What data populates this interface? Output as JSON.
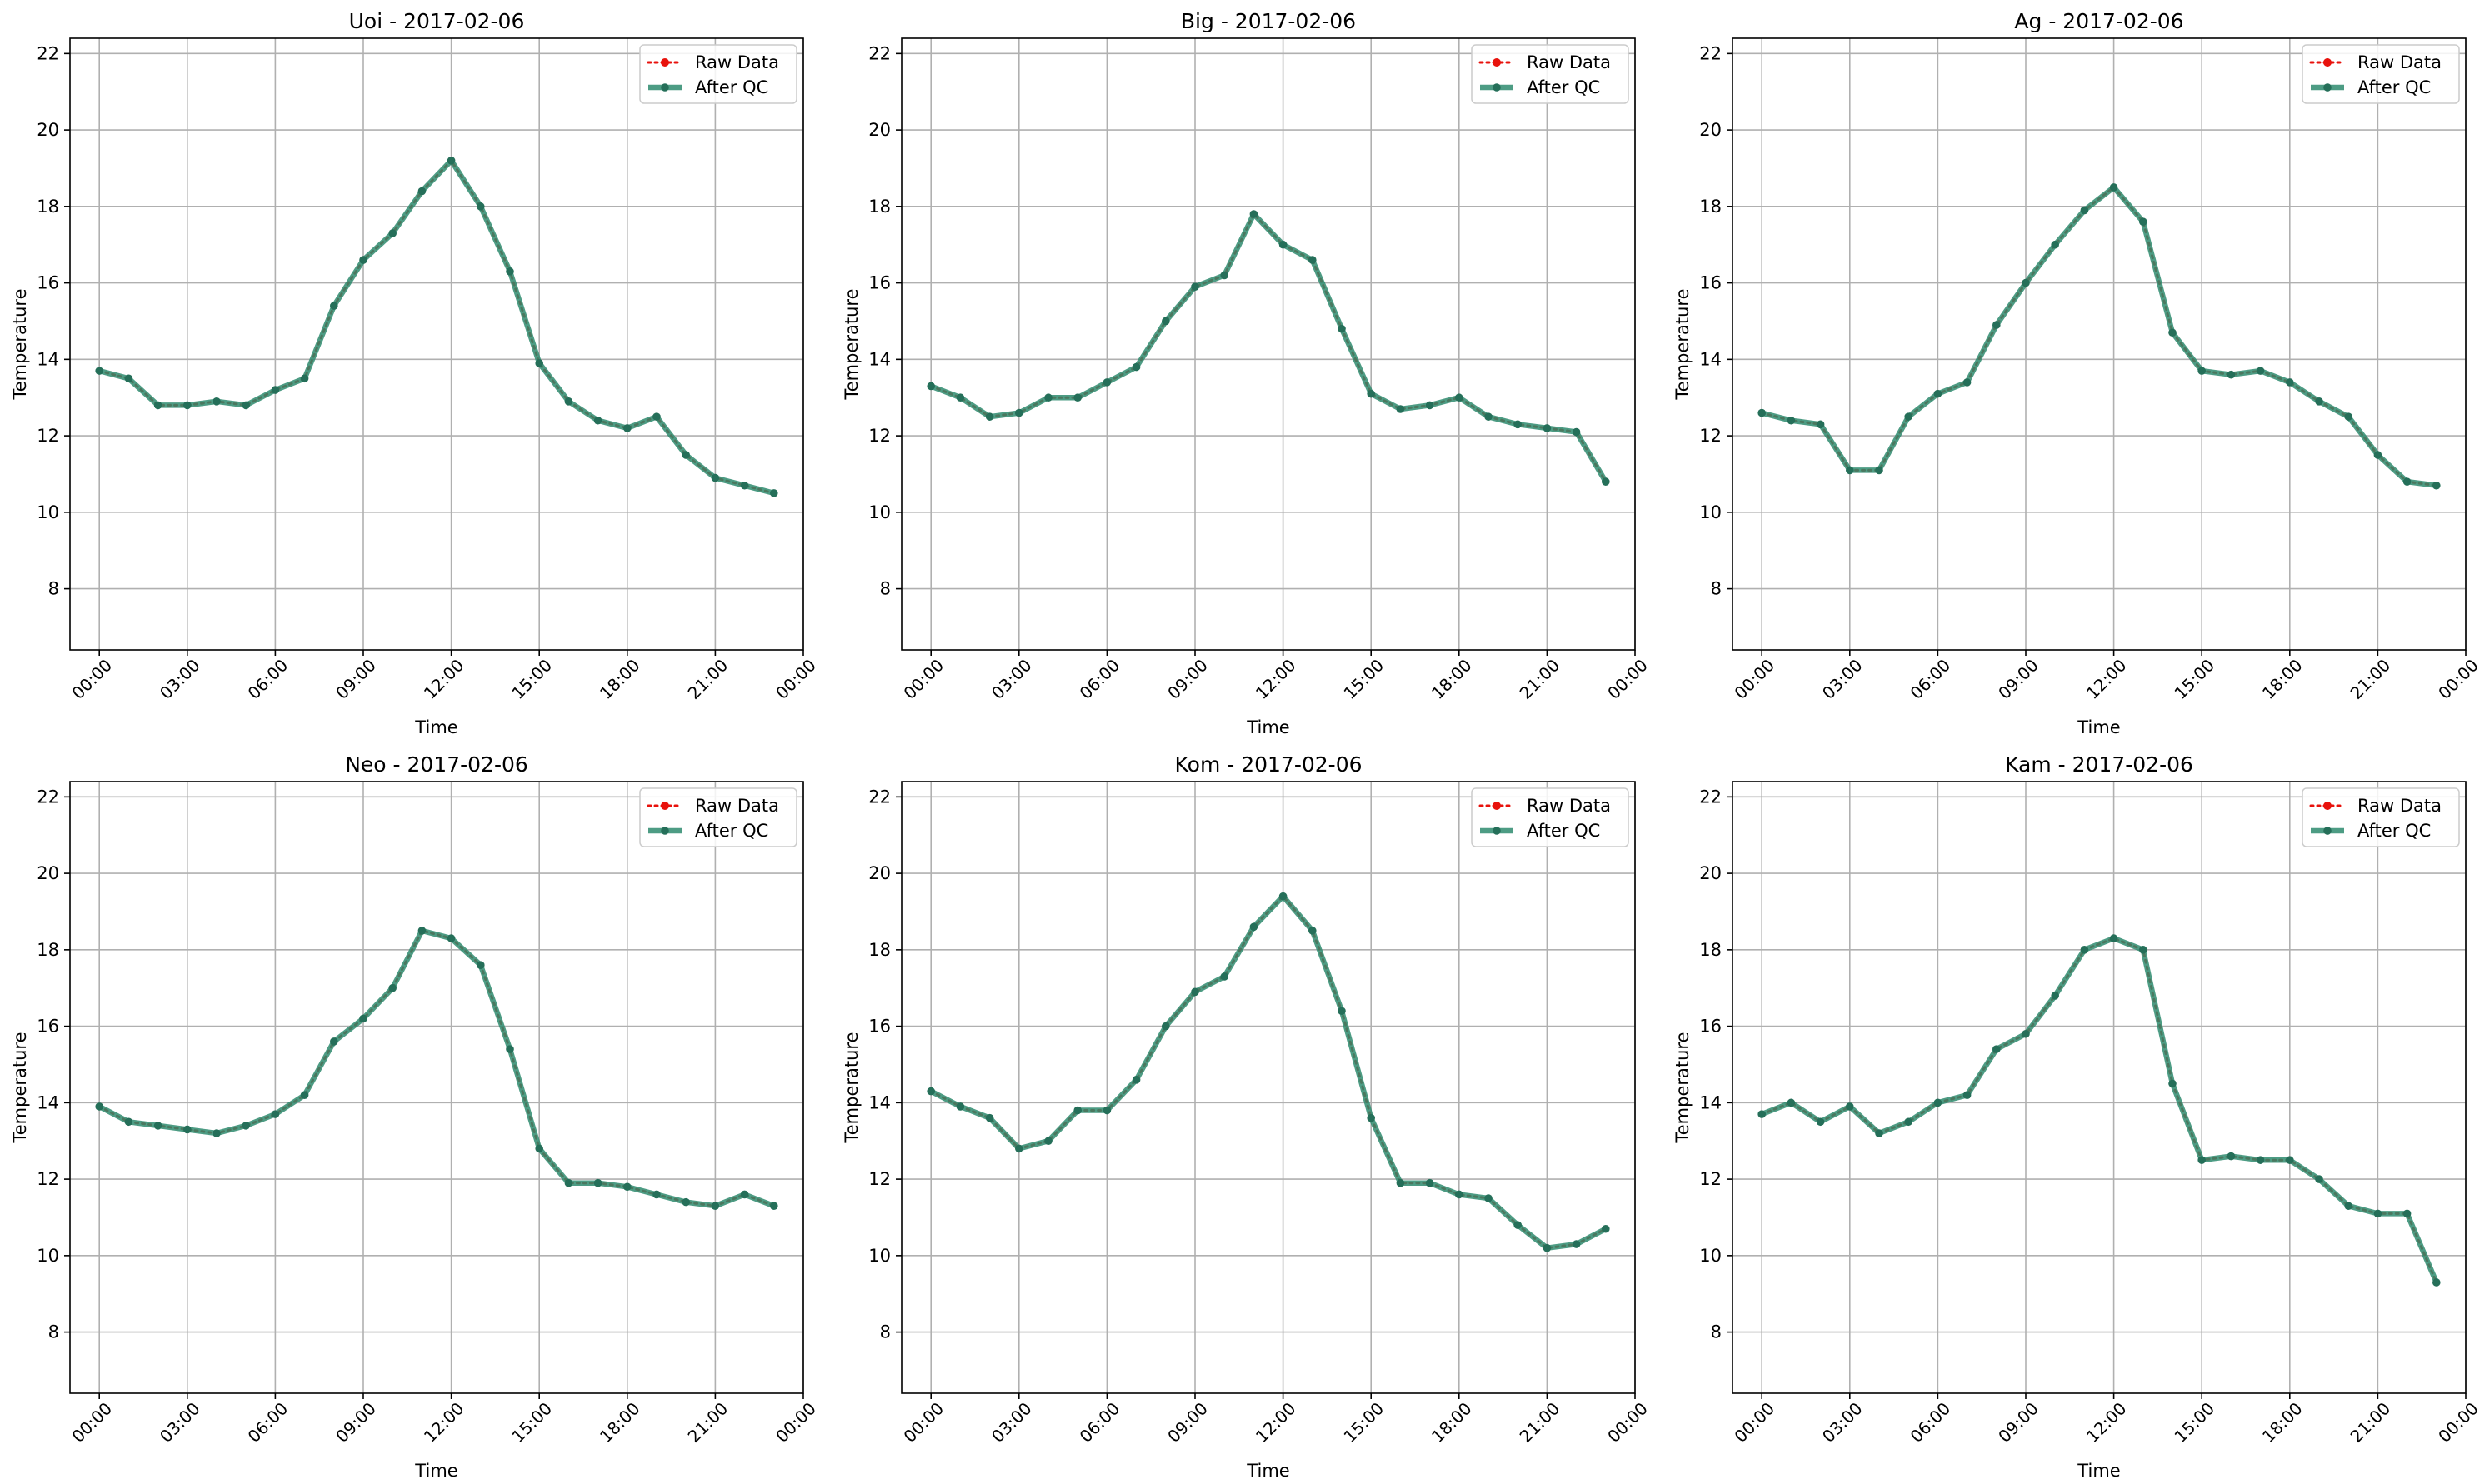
{
  "x_tick_labels": [
    "00:00",
    "03:00",
    "06:00",
    "09:00",
    "12:00",
    "15:00",
    "18:00",
    "21:00",
    "00:00"
  ],
  "y_tick_labels": [
    "8",
    "10",
    "12",
    "14",
    "16",
    "18",
    "20",
    "22"
  ],
  "xlabel": "Time",
  "ylabel": "Temperature",
  "legend_labels": [
    "Raw Data",
    "After QC"
  ],
  "colors": {
    "raw": "#e8120c",
    "qc": "#2e8b6f",
    "grid": "#b0b0b0",
    "axis": "#000000"
  },
  "chart_data": [
    {
      "type": "line",
      "title": "Uoi - 2017-02-06",
      "xlabel": "Time",
      "ylabel": "Temperature",
      "ylim": [
        6.4,
        22.4
      ],
      "x_unit": "hours",
      "xlim": [
        -1.0,
        24.0
      ],
      "grid": true,
      "legend": "top-right",
      "x": [
        0,
        1,
        2,
        3,
        4,
        5,
        6,
        7,
        8,
        9,
        10,
        11,
        12,
        13,
        14,
        15,
        16,
        17,
        18,
        19,
        20,
        21,
        22,
        23
      ],
      "series": [
        {
          "name": "Raw Data",
          "values": [
            13.7,
            13.5,
            12.8,
            12.8,
            12.9,
            12.8,
            13.2,
            13.5,
            15.4,
            16.6,
            17.3,
            18.4,
            19.2,
            18.0,
            16.3,
            13.9,
            12.9,
            12.4,
            12.2,
            12.5,
            11.5,
            10.9,
            10.7,
            10.5
          ]
        },
        {
          "name": "After QC",
          "values": [
            13.7,
            13.5,
            12.8,
            12.8,
            12.9,
            12.8,
            13.2,
            13.5,
            15.4,
            16.6,
            17.3,
            18.4,
            19.2,
            18.0,
            16.3,
            13.9,
            12.9,
            12.4,
            12.2,
            12.5,
            11.5,
            10.9,
            10.7,
            10.5
          ]
        }
      ]
    },
    {
      "type": "line",
      "title": "Big - 2017-02-06",
      "xlabel": "Time",
      "ylabel": "Temperature",
      "ylim": [
        6.4,
        22.4
      ],
      "x_unit": "hours",
      "xlim": [
        -1.0,
        24.0
      ],
      "grid": true,
      "legend": "top-right",
      "x": [
        0,
        1,
        2,
        3,
        4,
        5,
        6,
        7,
        8,
        9,
        10,
        11,
        12,
        13,
        14,
        15,
        16,
        17,
        18,
        19,
        20,
        21,
        22,
        23
      ],
      "series": [
        {
          "name": "Raw Data",
          "values": [
            13.3,
            13.0,
            12.5,
            12.6,
            13.0,
            13.0,
            13.4,
            13.8,
            15.0,
            15.9,
            16.2,
            17.8,
            17.0,
            16.6,
            14.8,
            13.1,
            12.7,
            12.8,
            13.0,
            12.5,
            12.3,
            12.2,
            12.1,
            10.8
          ]
        },
        {
          "name": "After QC",
          "values": [
            13.3,
            13.0,
            12.5,
            12.6,
            13.0,
            13.0,
            13.4,
            13.8,
            15.0,
            15.9,
            16.2,
            17.8,
            17.0,
            16.6,
            14.8,
            13.1,
            12.7,
            12.8,
            13.0,
            12.5,
            12.3,
            12.2,
            12.1,
            10.8
          ]
        }
      ]
    },
    {
      "type": "line",
      "title": "Ag - 2017-02-06",
      "xlabel": "Time",
      "ylabel": "Temperature",
      "ylim": [
        6.4,
        22.4
      ],
      "x_unit": "hours",
      "xlim": [
        -1.0,
        24.0
      ],
      "grid": true,
      "legend": "top-right",
      "x": [
        0,
        1,
        2,
        3,
        4,
        5,
        6,
        7,
        8,
        9,
        10,
        11,
        12,
        13,
        14,
        15,
        16,
        17,
        18,
        19,
        20,
        21,
        22,
        23
      ],
      "series": [
        {
          "name": "Raw Data",
          "values": [
            12.6,
            12.4,
            12.3,
            11.1,
            11.1,
            12.5,
            13.1,
            13.4,
            14.9,
            16.0,
            17.0,
            17.9,
            18.5,
            17.6,
            14.7,
            13.7,
            13.6,
            13.7,
            13.4,
            12.9,
            12.5,
            11.5,
            10.8,
            10.7
          ]
        },
        {
          "name": "After QC",
          "values": [
            12.6,
            12.4,
            12.3,
            11.1,
            11.1,
            12.5,
            13.1,
            13.4,
            14.9,
            16.0,
            17.0,
            17.9,
            18.5,
            17.6,
            14.7,
            13.7,
            13.6,
            13.7,
            13.4,
            12.9,
            12.5,
            11.5,
            10.8,
            10.7
          ]
        }
      ]
    },
    {
      "type": "line",
      "title": "Neo - 2017-02-06",
      "xlabel": "Time",
      "ylabel": "Temperature",
      "ylim": [
        6.4,
        22.4
      ],
      "x_unit": "hours",
      "xlim": [
        -1.0,
        24.0
      ],
      "grid": true,
      "legend": "top-right",
      "x": [
        0,
        1,
        2,
        3,
        4,
        5,
        6,
        7,
        8,
        9,
        10,
        11,
        12,
        13,
        14,
        15,
        16,
        17,
        18,
        19,
        20,
        21,
        22,
        23
      ],
      "series": [
        {
          "name": "Raw Data",
          "values": [
            13.9,
            13.5,
            13.4,
            13.3,
            13.2,
            13.4,
            13.7,
            14.2,
            15.6,
            16.2,
            17.0,
            18.5,
            18.3,
            17.6,
            15.4,
            12.8,
            11.9,
            11.9,
            11.8,
            11.6,
            11.4,
            11.3,
            11.6,
            11.3
          ]
        },
        {
          "name": "After QC",
          "values": [
            13.9,
            13.5,
            13.4,
            13.3,
            13.2,
            13.4,
            13.7,
            14.2,
            15.6,
            16.2,
            17.0,
            18.5,
            18.3,
            17.6,
            15.4,
            12.8,
            11.9,
            11.9,
            11.8,
            11.6,
            11.4,
            11.3,
            11.6,
            11.3
          ]
        }
      ]
    },
    {
      "type": "line",
      "title": "Kom - 2017-02-06",
      "xlabel": "Time",
      "ylabel": "Temperature",
      "ylim": [
        6.4,
        22.4
      ],
      "x_unit": "hours",
      "xlim": [
        -1.0,
        24.0
      ],
      "grid": true,
      "legend": "top-right",
      "x": [
        0,
        1,
        2,
        3,
        4,
        5,
        6,
        7,
        8,
        9,
        10,
        11,
        12,
        13,
        14,
        15,
        16,
        17,
        18,
        19,
        20,
        21,
        22,
        23
      ],
      "series": [
        {
          "name": "Raw Data",
          "values": [
            14.3,
            13.9,
            13.6,
            12.8,
            13.0,
            13.8,
            13.8,
            14.6,
            16.0,
            16.9,
            17.3,
            18.6,
            19.4,
            18.5,
            16.4,
            13.6,
            11.9,
            11.9,
            11.6,
            11.5,
            10.8,
            10.2,
            10.3,
            10.7
          ]
        },
        {
          "name": "After QC",
          "values": [
            14.3,
            13.9,
            13.6,
            12.8,
            13.0,
            13.8,
            13.8,
            14.6,
            16.0,
            16.9,
            17.3,
            18.6,
            19.4,
            18.5,
            16.4,
            13.6,
            11.9,
            11.9,
            11.6,
            11.5,
            10.8,
            10.2,
            10.3,
            10.7
          ]
        }
      ]
    },
    {
      "type": "line",
      "title": "Kam - 2017-02-06",
      "xlabel": "Time",
      "ylabel": "Temperature",
      "ylim": [
        6.4,
        22.4
      ],
      "x_unit": "hours",
      "xlim": [
        -1.0,
        24.0
      ],
      "grid": true,
      "legend": "top-right",
      "x": [
        0,
        1,
        2,
        3,
        4,
        5,
        6,
        7,
        8,
        9,
        10,
        11,
        12,
        13,
        14,
        15,
        16,
        17,
        18,
        19,
        20,
        21,
        22,
        23
      ],
      "series": [
        {
          "name": "Raw Data",
          "values": [
            13.7,
            14.0,
            13.5,
            13.9,
            13.2,
            13.5,
            14.0,
            14.2,
            15.4,
            15.8,
            16.8,
            18.0,
            18.3,
            18.0,
            14.5,
            12.5,
            12.6,
            12.5,
            12.5,
            12.0,
            11.3,
            11.1,
            11.1,
            9.3
          ]
        },
        {
          "name": "After QC",
          "values": [
            13.7,
            14.0,
            13.5,
            13.9,
            13.2,
            13.5,
            14.0,
            14.2,
            15.4,
            15.8,
            16.8,
            18.0,
            18.3,
            18.0,
            14.5,
            12.5,
            12.6,
            12.5,
            12.5,
            12.0,
            11.3,
            11.1,
            11.1,
            9.3
          ]
        }
      ]
    }
  ]
}
